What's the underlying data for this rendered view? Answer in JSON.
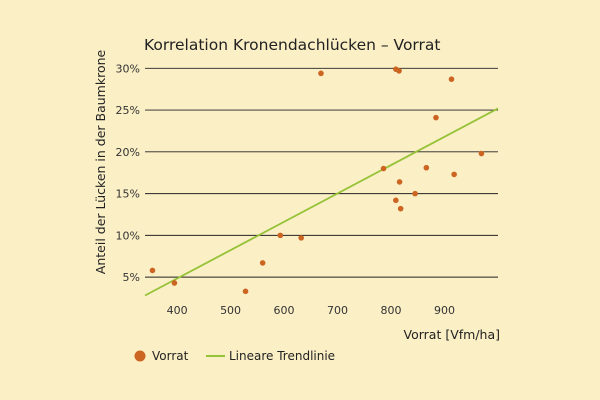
{
  "chart_data": {
    "type": "scatter",
    "title": "Korrelation Kronendachlücken – Vorrat",
    "xlabel": "Vorrat [Vfm/ha]",
    "ylabel": "Anteil der Lücken in der Baumkrone",
    "xlim": [
      340,
      1000
    ],
    "ylim": [
      2.5,
      31
    ],
    "x_ticks": [
      400,
      500,
      600,
      700,
      800,
      900
    ],
    "y_ticks": [
      5,
      10,
      15,
      20,
      25,
      30
    ],
    "y_tick_labels": [
      "5%",
      "10%",
      "15%",
      "20%",
      "25%",
      "30%"
    ],
    "grid": "horizontal",
    "legend_position": "bottom-left",
    "colors": {
      "points": "#cc6522",
      "trendline": "#95c236",
      "grid": "#222222",
      "background": "#fbefc6"
    },
    "series": [
      {
        "name": "Vorrat",
        "kind": "scatter",
        "points": [
          {
            "x": 354,
            "y": 5.8
          },
          {
            "x": 395,
            "y": 4.3
          },
          {
            "x": 528,
            "y": 3.3
          },
          {
            "x": 560,
            "y": 6.7
          },
          {
            "x": 593,
            "y": 10.0
          },
          {
            "x": 632,
            "y": 9.7
          },
          {
            "x": 669,
            "y": 29.4
          },
          {
            "x": 786,
            "y": 18.0
          },
          {
            "x": 809,
            "y": 14.2
          },
          {
            "x": 809,
            "y": 29.9
          },
          {
            "x": 815,
            "y": 29.7
          },
          {
            "x": 816,
            "y": 16.4
          },
          {
            "x": 818,
            "y": 13.2
          },
          {
            "x": 845,
            "y": 15.0
          },
          {
            "x": 866,
            "y": 18.1
          },
          {
            "x": 884,
            "y": 24.1
          },
          {
            "x": 913,
            "y": 28.7
          },
          {
            "x": 918,
            "y": 17.3
          },
          {
            "x": 969,
            "y": 19.8
          }
        ]
      },
      {
        "name": "Lineare Trendlinie",
        "kind": "line",
        "points": [
          {
            "x": 340,
            "y": 2.8
          },
          {
            "x": 1000,
            "y": 25.2
          }
        ]
      }
    ]
  }
}
